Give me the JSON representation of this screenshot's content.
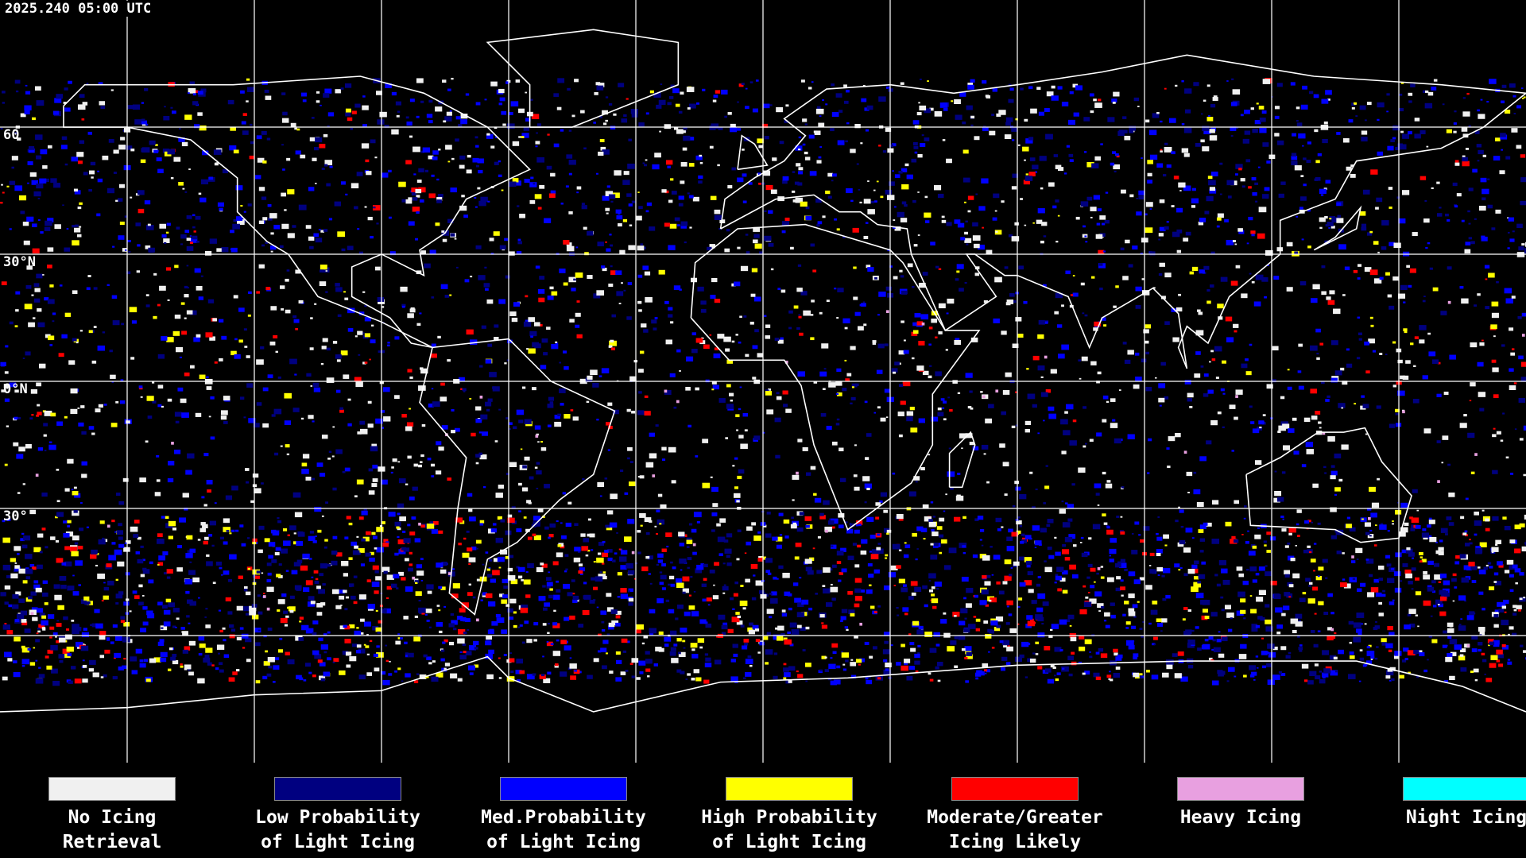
{
  "header": {
    "title": "2025.240 05:00 UTC"
  },
  "map": {
    "latitude_labels": [
      "60",
      "30°N",
      "0°N",
      "30°"
    ]
  },
  "legend": [
    {
      "lines": [
        "No Icing",
        "Retrieval"
      ],
      "color": "#f0f0f0"
    },
    {
      "lines": [
        "Low Probability",
        "of Light Icing"
      ],
      "color": "#000080"
    },
    {
      "lines": [
        "Med.Probability",
        "of Light Icing"
      ],
      "color": "#0000ff"
    },
    {
      "lines": [
        "High Probability",
        "of Light Icing"
      ],
      "color": "#ffff00"
    },
    {
      "lines": [
        "Moderate/Greater",
        "Icing Likely"
      ],
      "color": "#ff0000"
    },
    {
      "lines": [
        "Heavy Icing"
      ],
      "color": "#e8a0e0"
    },
    {
      "lines": [
        "Night Icing"
      ],
      "color": "#00ffff"
    }
  ]
}
